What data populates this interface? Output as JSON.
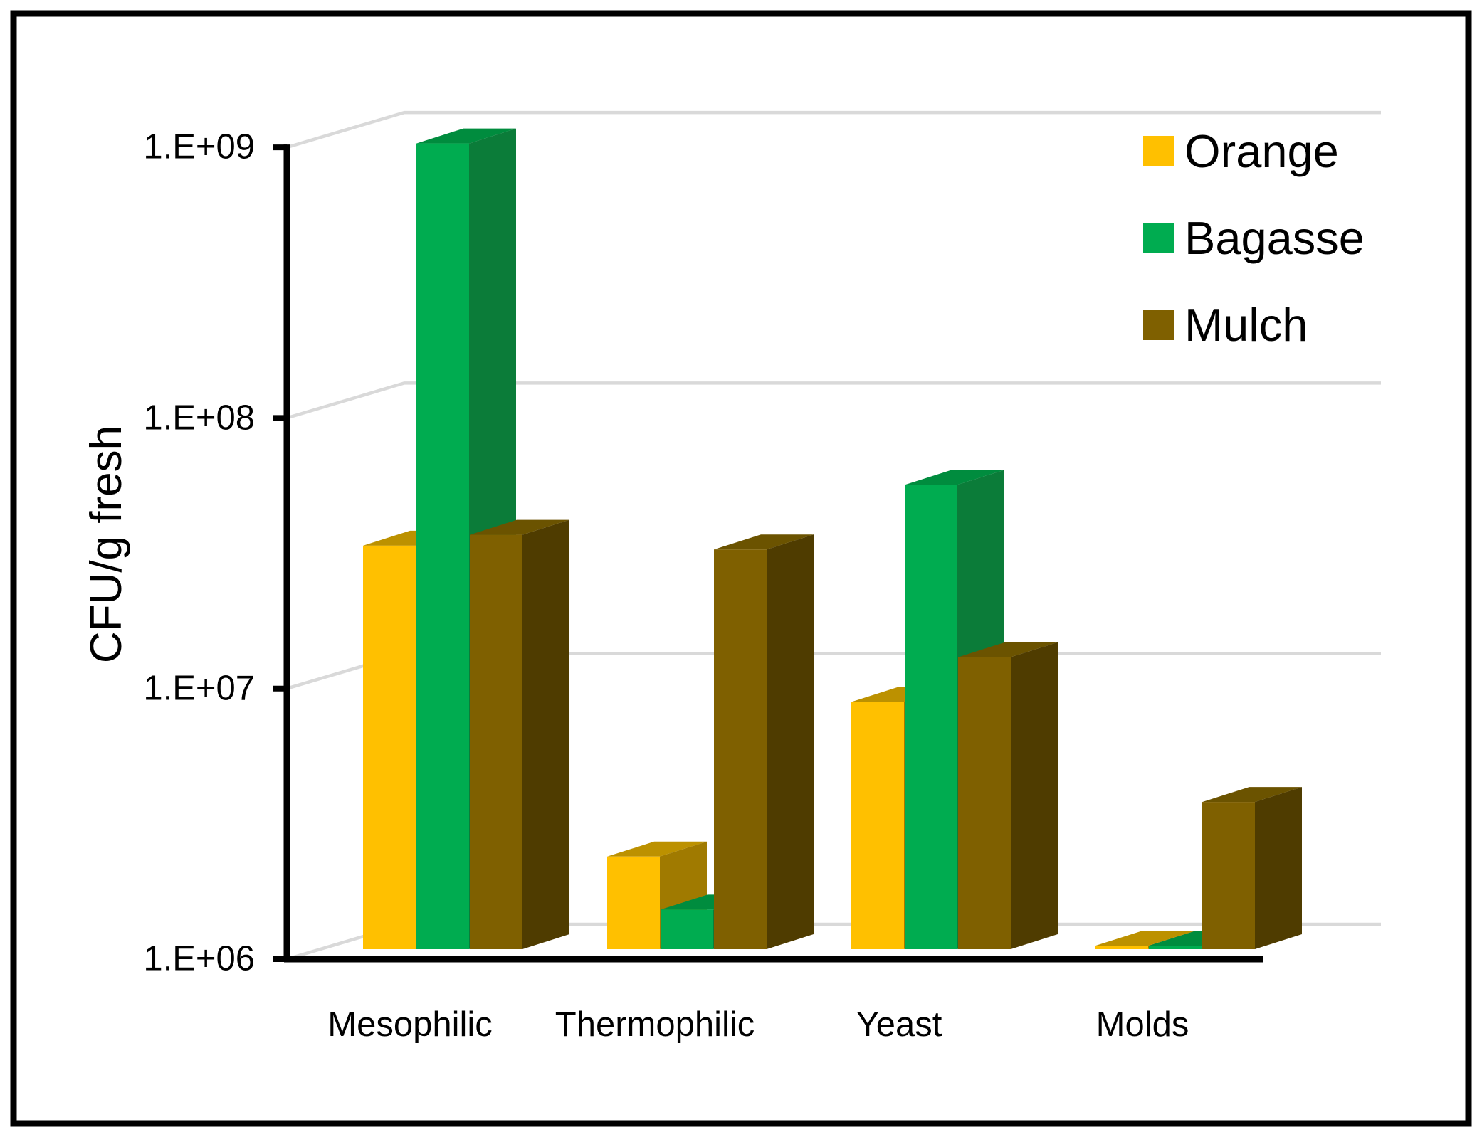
{
  "figure": {
    "background": "#FFFFFF",
    "border_color": "#000000"
  },
  "chart_data": {
    "type": "bar",
    "style": "3d-clustered-columns",
    "title": "",
    "xlabel": "",
    "ylabel": "CFU/g fresh",
    "categories": [
      "Mesophilic",
      "Thermophilic",
      "Yeast",
      "Molds"
    ],
    "series": [
      {
        "name": "Orange",
        "color": "#FFC000",
        "top_color": "#BC9100",
        "side_color": "#A07A00",
        "values": [
          31000000,
          2200000,
          8200000,
          1030000
        ]
      },
      {
        "name": "Bagasse",
        "color": "#00AC50",
        "top_color": "#008C3E",
        "side_color": "#0B7C39",
        "values": [
          950000000,
          1400000,
          52000000,
          1030000
        ]
      },
      {
        "name": "Mulch",
        "color": "#7F6000",
        "top_color": "#6B5300",
        "side_color": "#4F3C00",
        "values": [
          34000000,
          30000000,
          12000000,
          3500000
        ]
      }
    ],
    "yaxis": {
      "scale": "log",
      "ylim": [
        1000000,
        1000000000
      ],
      "ticks": [
        {
          "label": "1.E+09",
          "value": 1000000000
        },
        {
          "label": "1.E+08",
          "value": 100000000
        },
        {
          "label": "1.E+07",
          "value": 10000000
        },
        {
          "label": "1.E+06",
          "value": 1000000
        }
      ]
    },
    "grid": true,
    "gridline_color": "#D9D9D9",
    "axis_color": "#000000",
    "legend_position": "top-right"
  }
}
